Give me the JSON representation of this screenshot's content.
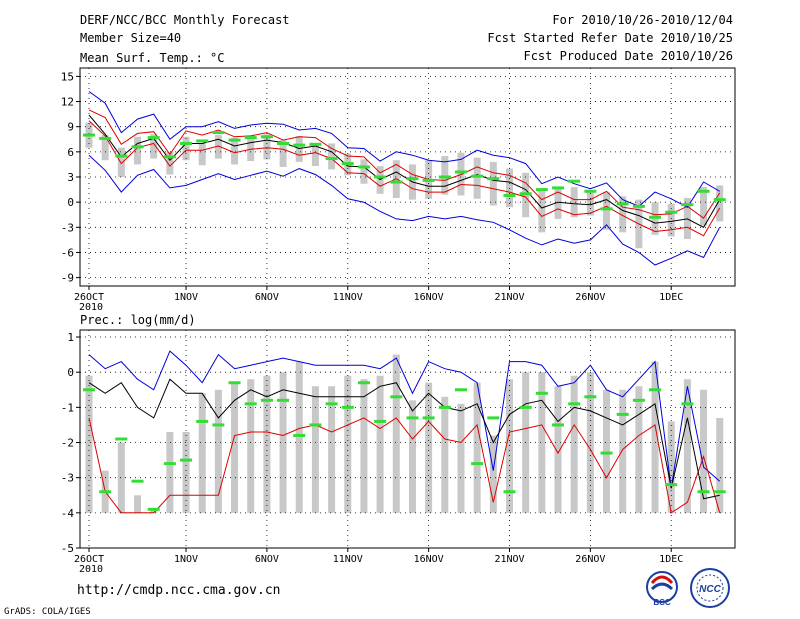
{
  "header": {
    "title": "DERF/NCC/BCC Monthly Forecast",
    "member_size": "Member Size=40",
    "forecast_period": "For 2010/10/26-2010/12/04",
    "fcst_started": "Fcst Started Refer Date 2010/10/25",
    "fcst_produced": "Fcst Produced Date 2010/10/26"
  },
  "footer": {
    "url": "http://cmdp.ncc.cma.gov.cn",
    "credit": "GrADS: COLA/IGES",
    "logo_bcc_text": "BCC",
    "logo_ncc_text": "NCC"
  },
  "colors": {
    "upper": "#0000dd",
    "lower": "#dd0000",
    "mean": "#000000",
    "box": "#c8c8c8",
    "obs": "#33dd33",
    "grid": "#000000"
  },
  "chart_data": [
    {
      "type": "box-line",
      "title": "Mean Surf. Temp.: °C",
      "xlabel": "",
      "ylabel": "",
      "ylim": [
        -10,
        16
      ],
      "yticks": [
        15,
        12,
        9,
        6,
        3,
        0,
        -3,
        -6,
        -9
      ],
      "x_tick_labels": [
        "26OCT",
        "1NOV",
        "6NOV",
        "11NOV",
        "16NOV",
        "21NOV",
        "26NOV",
        "1DEC"
      ],
      "x_tick_days": [
        0,
        6,
        11,
        16,
        21,
        26,
        31,
        36
      ],
      "x_sublabel": "2010",
      "days": 40,
      "series": [
        {
          "name": "upper",
          "values": [
            13.2,
            11.8,
            8.3,
            9.9,
            10.5,
            7.5,
            9.0,
            9.0,
            9.6,
            8.8,
            9.2,
            9.4,
            9.3,
            8.6,
            8.8,
            8.2,
            6.5,
            6.4,
            4.9,
            6.0,
            5.6,
            5.0,
            4.8,
            5.1,
            6.2,
            5.6,
            5.3,
            4.6,
            2.2,
            3.0,
            2.2,
            1.6,
            2.3,
            0.3,
            -0.5,
            1.2,
            0.4,
            -0.6,
            2.4,
            1.3
          ]
        },
        {
          "name": "lower",
          "values": [
            9.7,
            7.9,
            4.6,
            6.5,
            7.0,
            4.3,
            6.2,
            6.2,
            6.7,
            5.9,
            6.3,
            6.5,
            6.3,
            5.6,
            5.9,
            5.2,
            3.5,
            3.4,
            1.9,
            2.8,
            1.6,
            1.2,
            1.2,
            2.1,
            2.0,
            1.6,
            1.2,
            0.6,
            -1.7,
            -0.8,
            -1.5,
            -1.3,
            -0.5,
            -1.6,
            -2.6,
            -3.5,
            -3.3,
            -3.0,
            -4.0,
            -0.7
          ]
        },
        {
          "name": "mean",
          "values": [
            10.4,
            8.1,
            5.4,
            7.0,
            7.6,
            5.0,
            7.0,
            7.0,
            7.5,
            6.7,
            7.1,
            7.4,
            7.1,
            6.4,
            6.7,
            6.0,
            4.3,
            4.2,
            2.7,
            3.6,
            2.4,
            1.9,
            1.9,
            2.6,
            3.3,
            2.6,
            2.4,
            1.5,
            -0.7,
            0.0,
            -0.2,
            -0.3,
            0.3,
            -1.0,
            -1.6,
            -2.5,
            -2.3,
            -2.0,
            -3.0,
            0.3
          ]
        },
        {
          "name": "upper_extreme",
          "values": [
            11.0,
            10.1,
            6.9,
            8.2,
            8.4,
            5.7,
            8.5,
            8.0,
            8.6,
            7.8,
            7.9,
            8.3,
            7.4,
            7.8,
            7.7,
            6.4,
            5.5,
            5.4,
            3.5,
            4.5,
            3.3,
            2.7,
            2.6,
            3.3,
            4.2,
            3.5,
            3.2,
            2.3,
            0.3,
            1.2,
            0.3,
            0.3,
            1.3,
            -0.6,
            -0.9,
            -1.5,
            -1.4,
            -0.5,
            -1.9,
            1.1
          ]
        },
        {
          "name": "lower_extreme",
          "values": [
            5.6,
            3.8,
            1.2,
            3.2,
            3.9,
            1.7,
            2.0,
            2.7,
            3.4,
            2.7,
            3.2,
            3.7,
            3.1,
            4.0,
            3.3,
            2.0,
            0.4,
            0.0,
            -1.1,
            -2.0,
            -2.2,
            -1.7,
            -2.0,
            -1.7,
            -2.1,
            -2.4,
            -3.3,
            -4.3,
            -5.1,
            -4.4,
            -4.9,
            -4.5,
            -2.7,
            -5.0,
            -6.0,
            -7.5,
            -6.7,
            -5.8,
            -6.6,
            -3.0
          ]
        },
        {
          "name": "box_top",
          "values": [
            9.5,
            8.0,
            6.5,
            7.8,
            8.1,
            6.0,
            7.8,
            7.0,
            8.0,
            7.7,
            7.9,
            8.1,
            7.4,
            7.9,
            7.0,
            7.0,
            5.8,
            5.1,
            4.3,
            5.0,
            4.5,
            5.0,
            5.5,
            5.9,
            5.3,
            4.8,
            4.0,
            3.5,
            1.5,
            1.7,
            1.8,
            1.2,
            1.2,
            0.7,
            0.3,
            0.0,
            -0.2,
            0.5,
            1.8,
            2.0
          ]
        },
        {
          "name": "box_bottom",
          "values": [
            6.5,
            5.0,
            3.0,
            4.5,
            5.2,
            3.3,
            5.0,
            4.4,
            5.2,
            4.5,
            4.9,
            5.1,
            4.2,
            4.8,
            4.3,
            3.9,
            3.2,
            2.2,
            1.0,
            0.5,
            0.3,
            0.4,
            0.9,
            0.8,
            0.4,
            -0.4,
            -0.6,
            -1.8,
            -3.6,
            -2.0,
            -1.8,
            -1.6,
            -3.3,
            -3.6,
            -5.5,
            -3.9,
            -4.1,
            -4.4,
            -2.8,
            -2.3
          ]
        },
        {
          "name": "observed_bars",
          "values": [
            8.0,
            7.6,
            5.5,
            6.6,
            7.7,
            5.4,
            7.0,
            7.3,
            8.3,
            7.4,
            7.7,
            7.8,
            7.0,
            6.8,
            6.9,
            5.2,
            4.6,
            4.2,
            3.0,
            2.4,
            2.8,
            2.6,
            3.0,
            3.6,
            3.1,
            2.8,
            0.8,
            1.0,
            1.5,
            1.7,
            2.5,
            1.3,
            -0.8,
            -0.2,
            -0.5,
            -1.8,
            -1.2,
            -0.3,
            1.3,
            0.3
          ]
        }
      ]
    },
    {
      "type": "box-line",
      "title": "Prec.: log(mm/d)",
      "xlabel": "",
      "ylabel": "",
      "ylim": [
        -5,
        1.2
      ],
      "yticks": [
        1,
        0,
        -1,
        -2,
        -3,
        -4,
        -5
      ],
      "x_tick_labels": [
        "26OCT",
        "1NOV",
        "6NOV",
        "11NOV",
        "16NOV",
        "21NOV",
        "26NOV",
        "1DEC"
      ],
      "x_tick_days": [
        0,
        6,
        11,
        16,
        21,
        26,
        31,
        36
      ],
      "x_sublabel": "2010",
      "days": 40,
      "series": [
        {
          "name": "upper",
          "values": [
            0.5,
            0.1,
            0.3,
            -0.2,
            -0.5,
            0.6,
            0.2,
            -0.3,
            0.5,
            0.1,
            0.2,
            0.3,
            0.4,
            0.3,
            0.2,
            0.2,
            0.2,
            0.2,
            0.1,
            0.4,
            -0.6,
            0.3,
            0.1,
            0.0,
            -0.3,
            -2.8,
            0.3,
            0.3,
            0.2,
            -0.4,
            -0.3,
            0.2,
            -0.5,
            -0.7,
            -0.2,
            0.3,
            -3.3,
            -0.4,
            -2.7,
            -3.1
          ]
        },
        {
          "name": "lower",
          "values": [
            -1.3,
            -3.4,
            -4.0,
            -4.0,
            -4.0,
            -3.5,
            -3.5,
            -3.5,
            -3.5,
            -1.8,
            -1.7,
            -1.7,
            -1.8,
            -1.6,
            -1.5,
            -1.7,
            -1.5,
            -1.3,
            -1.6,
            -1.3,
            -1.9,
            -1.4,
            -1.9,
            -2.0,
            -1.5,
            -3.7,
            -1.7,
            -1.6,
            -1.5,
            -2.3,
            -1.5,
            -2.2,
            -3.0,
            -2.2,
            -1.8,
            -1.5,
            -4.0,
            -3.7,
            -2.4,
            -4.0
          ]
        },
        {
          "name": "mean",
          "values": [
            -0.3,
            -0.6,
            -0.3,
            -1.0,
            -1.3,
            -0.2,
            -0.6,
            -0.6,
            -1.3,
            -0.8,
            -0.5,
            -0.7,
            -0.5,
            -0.6,
            -0.7,
            -0.7,
            -0.7,
            -0.7,
            -0.4,
            -0.3,
            -1.1,
            -0.6,
            -1.0,
            -1.1,
            -0.9,
            -2.0,
            -1.2,
            -0.9,
            -0.8,
            -1.4,
            -1.0,
            -1.1,
            -1.3,
            -1.5,
            -1.2,
            -0.9,
            -3.3,
            -1.3,
            -3.6,
            -3.5
          ]
        },
        {
          "name": "box_top",
          "values": [
            -0.1,
            -2.8,
            -2.0,
            -3.5,
            -3.9,
            -1.7,
            -1.7,
            -0.6,
            -0.5,
            -0.3,
            -0.2,
            -0.1,
            0.0,
            0.3,
            -0.4,
            -0.4,
            -0.1,
            -0.2,
            -0.1,
            0.5,
            -0.8,
            -0.3,
            -0.7,
            -0.9,
            -0.3,
            -1.8,
            -0.2,
            0.0,
            0.0,
            -0.4,
            -0.1,
            0.0,
            -0.5,
            -0.5,
            -0.4,
            0.3,
            -1.4,
            -0.2,
            -0.5,
            -1.3
          ]
        },
        {
          "name": "box_bottom",
          "values": [
            -4.0,
            -4.0,
            -4.0,
            -4.0,
            -4.0,
            -4.0,
            -4.0,
            -4.0,
            -4.0,
            -4.0,
            -4.0,
            -4.0,
            -4.0,
            -4.0,
            -4.0,
            -4.0,
            -4.0,
            -4.0,
            -4.0,
            -4.0,
            -4.0,
            -4.0,
            -4.0,
            -4.0,
            -4.0,
            -4.0,
            -4.0,
            -4.0,
            -4.0,
            -4.0,
            -4.0,
            -4.0,
            -4.0,
            -4.0,
            -4.0,
            -4.0,
            -4.0,
            -4.0,
            -4.0,
            -4.0
          ]
        },
        {
          "name": "observed_bars",
          "values": [
            -0.5,
            -3.4,
            -1.9,
            -3.1,
            -3.9,
            -2.6,
            -2.5,
            -1.4,
            -1.5,
            -0.3,
            -0.9,
            -0.8,
            -0.8,
            -1.8,
            -1.5,
            -0.9,
            -1.0,
            -0.3,
            -1.4,
            -0.7,
            -1.3,
            -1.3,
            -1.0,
            -0.5,
            -2.6,
            -1.3,
            -3.4,
            -1.0,
            -0.6,
            -1.5,
            -0.9,
            -0.7,
            -2.3,
            -1.2,
            -0.8,
            -0.5,
            -3.2,
            -0.9,
            -3.4,
            -3.4
          ]
        }
      ]
    }
  ]
}
